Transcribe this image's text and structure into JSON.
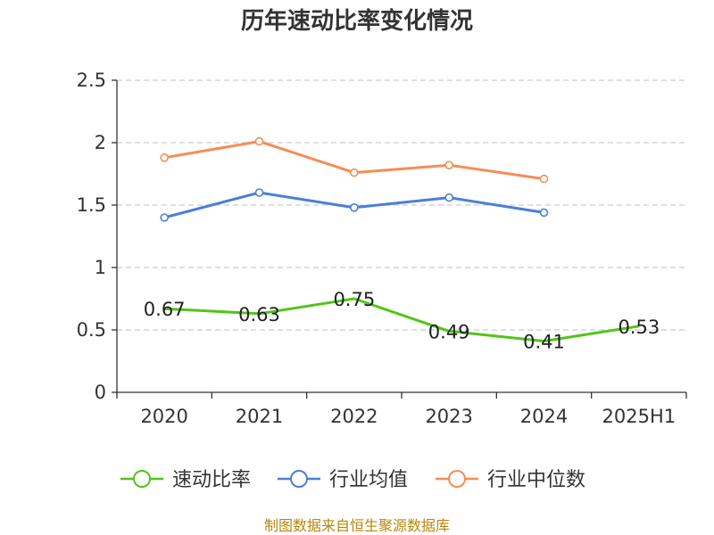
{
  "chart_data": {
    "type": "line",
    "title": "历年速动比率变化情况",
    "categories": [
      "2020",
      "2021",
      "2022",
      "2023",
      "2024",
      "2025H1"
    ],
    "ylim": [
      0,
      2.5
    ],
    "yticks": [
      "0",
      "0.5",
      "1",
      "1.5",
      "2",
      "2.5"
    ],
    "grid": true,
    "legend_position": "bottom",
    "series": [
      {
        "name": "速动比率",
        "color": "#52c41a",
        "values": [
          0.67,
          0.63,
          0.75,
          0.49,
          0.41,
          0.53
        ],
        "labels": [
          "0.67",
          "0.63",
          "0.75",
          "0.49",
          "0.41",
          "0.53"
        ],
        "show_markers": false
      },
      {
        "name": "行业均值",
        "color": "#4a7fd8",
        "values": [
          1.4,
          1.6,
          1.48,
          1.56,
          1.44,
          null
        ],
        "show_markers": true
      },
      {
        "name": "行业中位数",
        "color": "#f58d55",
        "values": [
          1.88,
          2.01,
          1.76,
          1.82,
          1.71,
          null
        ],
        "show_markers": true
      }
    ]
  },
  "source": "制图数据来自恒生聚源数据库"
}
